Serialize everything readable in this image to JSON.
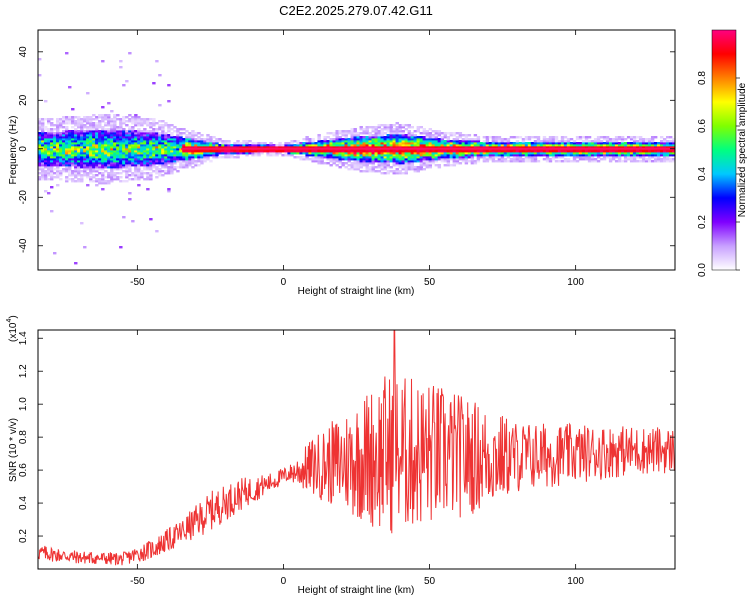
{
  "title": "C2E2.2025.279.07.42.G11",
  "colorbar": {
    "label": "Normalized spectral amplitude",
    "range": [
      0,
      1
    ],
    "ticks": [
      "0.0",
      "0.2",
      "0.4",
      "0.6",
      "0.8"
    ],
    "tick_values": [
      0.0,
      0.2,
      0.4,
      0.6,
      0.8
    ],
    "stops": [
      "#ffffff",
      "#c8a0ff",
      "#7f00ff",
      "#0000ff",
      "#00c8ff",
      "#00ff80",
      "#80ff00",
      "#ffff00",
      "#ff8000",
      "#ff0000",
      "#ff0080"
    ]
  },
  "chart_data": [
    {
      "type": "heatmap",
      "name": "spectrogram",
      "xlabel": "Height of straight line (km)",
      "ylabel": "Frequency (Hz)",
      "xlim": [
        -84,
        134
      ],
      "ylim": [
        -50,
        49
      ],
      "x_ticks": [
        -50,
        0,
        50,
        100
      ],
      "x_tick_labels": [
        "-50",
        "0",
        "50",
        "100"
      ],
      "y_ticks": [
        -40,
        -20,
        0,
        20,
        40
      ],
      "y_tick_labels": [
        "-40",
        "-20",
        "0",
        "20",
        "40"
      ],
      "ridge_frequency_hz": 0,
      "band_halfwidth_hz": [
        {
          "x": -84,
          "w": 7
        },
        {
          "x": -60,
          "w": 8
        },
        {
          "x": -45,
          "w": 7
        },
        {
          "x": -35,
          "w": 5
        },
        {
          "x": -20,
          "w": 2
        },
        {
          "x": 0,
          "w": 1.5
        },
        {
          "x": 10,
          "w": 3
        },
        {
          "x": 25,
          "w": 5
        },
        {
          "x": 40,
          "w": 6
        },
        {
          "x": 55,
          "w": 4
        },
        {
          "x": 70,
          "w": 3
        },
        {
          "x": 100,
          "w": 3
        },
        {
          "x": 134,
          "w": 3
        }
      ],
      "notes": "Strong red ridge near 0 Hz from about -35 to 134 km; broad scattered purple energy from -84 to -40 km reaching about +/-40 Hz"
    },
    {
      "type": "line",
      "name": "snr",
      "xlabel": "Height of straight line (km)",
      "ylabel": "SNR (10 * v/v)",
      "y_multiplier": "(x10",
      "y_multiplier_exp": "4",
      "y_multiplier_close": ")",
      "xlim": [
        -84,
        134
      ],
      "ylim": [
        0,
        1.45
      ],
      "x_ticks": [
        -50,
        0,
        50,
        100
      ],
      "x_tick_labels": [
        "-50",
        "0",
        "50",
        "100"
      ],
      "y_ticks": [
        0.2,
        0.4,
        0.6,
        0.8,
        1.0,
        1.2,
        1.4
      ],
      "y_tick_labels": [
        "0.2",
        "0.4",
        "0.6",
        "0.8",
        "1.0",
        "1.2",
        "1.4"
      ],
      "color": "#ee3333",
      "envelope": [
        {
          "x": -84,
          "mean": 0.1,
          "amp": 0.05
        },
        {
          "x": -70,
          "mean": 0.07,
          "amp": 0.04
        },
        {
          "x": -55,
          "mean": 0.06,
          "amp": 0.04
        },
        {
          "x": -45,
          "mean": 0.12,
          "amp": 0.06
        },
        {
          "x": -35,
          "mean": 0.22,
          "amp": 0.08
        },
        {
          "x": -25,
          "mean": 0.35,
          "amp": 0.12
        },
        {
          "x": -15,
          "mean": 0.45,
          "amp": 0.1
        },
        {
          "x": -5,
          "mean": 0.52,
          "amp": 0.06
        },
        {
          "x": 2,
          "mean": 0.58,
          "amp": 0.05
        },
        {
          "x": 10,
          "mean": 0.62,
          "amp": 0.18
        },
        {
          "x": 20,
          "mean": 0.65,
          "amp": 0.3
        },
        {
          "x": 35,
          "mean": 0.7,
          "amp": 0.5
        },
        {
          "x": 50,
          "mean": 0.7,
          "amp": 0.45
        },
        {
          "x": 65,
          "mean": 0.68,
          "amp": 0.35
        },
        {
          "x": 80,
          "mean": 0.68,
          "amp": 0.22
        },
        {
          "x": 100,
          "mean": 0.7,
          "amp": 0.18
        },
        {
          "x": 120,
          "mean": 0.72,
          "amp": 0.15
        },
        {
          "x": 134,
          "mean": 0.72,
          "amp": 0.14
        }
      ],
      "peak": {
        "x": 38,
        "y": 1.45
      }
    }
  ]
}
